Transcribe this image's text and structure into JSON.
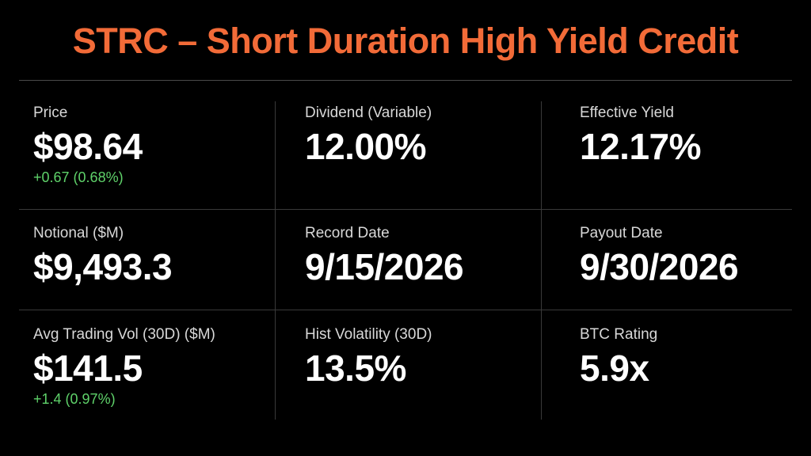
{
  "header": {
    "title": "STRC – Short Duration High Yield Credit"
  },
  "cells": [
    {
      "label": "Price",
      "value": "$98.64",
      "change": "+0.67 (0.68%)"
    },
    {
      "label": "Dividend (Variable)",
      "value": "12.00%"
    },
    {
      "label": "Effective Yield",
      "value": "12.17%"
    },
    {
      "label": "Notional ($M)",
      "value": "$9,493.3"
    },
    {
      "label": "Record Date",
      "value": "9/15/2026"
    },
    {
      "label": "Payout Date",
      "value": "9/30/2026"
    },
    {
      "label": "Avg Trading Vol (30D) ($M)",
      "value": "$141.5",
      "change": "+1.4 (0.97%)"
    },
    {
      "label": "Hist Volatility (30D)",
      "value": "13.5%"
    },
    {
      "label": "BTC Rating",
      "value": "5.9x"
    }
  ]
}
